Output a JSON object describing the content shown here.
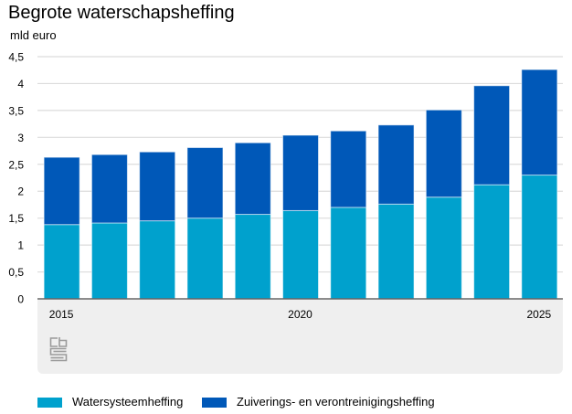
{
  "chart_data": {
    "type": "bar",
    "stacked": true,
    "title": "Begrote waterschapsheffing",
    "ylabel": "mld euro",
    "xlabel": "",
    "categories": [
      "2015",
      "2016",
      "2017",
      "2018",
      "2019",
      "2020",
      "2021",
      "2022",
      "2023",
      "2024",
      "2025"
    ],
    "x_tick_labels": [
      {
        "category": "2015",
        "label": "2015"
      },
      {
        "category": "2020",
        "label": "2020"
      },
      {
        "category": "2025",
        "label": "2025"
      }
    ],
    "series": [
      {
        "name": "Watersysteemheffing",
        "color": "#00a1cd",
        "values": [
          1.38,
          1.41,
          1.45,
          1.5,
          1.57,
          1.64,
          1.7,
          1.76,
          1.89,
          2.12,
          2.3
        ]
      },
      {
        "name": "Zuiverings- en verontreinigingsheffing",
        "color": "#0058b8",
        "values": [
          1.25,
          1.27,
          1.28,
          1.31,
          1.33,
          1.4,
          1.42,
          1.47,
          1.62,
          1.84,
          1.96
        ]
      }
    ],
    "ylim": [
      0,
      4.5
    ],
    "y_ticks": [
      0,
      0.5,
      1,
      1.5,
      2,
      2.5,
      3,
      3.5,
      4,
      4.5
    ],
    "y_tick_labels": [
      "0",
      "0,5",
      "1",
      "1,5",
      "2",
      "2,5",
      "3",
      "3,5",
      "4",
      "4,5"
    ],
    "grid": true,
    "legend_position": "bottom"
  },
  "branding": {
    "logo": "cbs-logo"
  }
}
